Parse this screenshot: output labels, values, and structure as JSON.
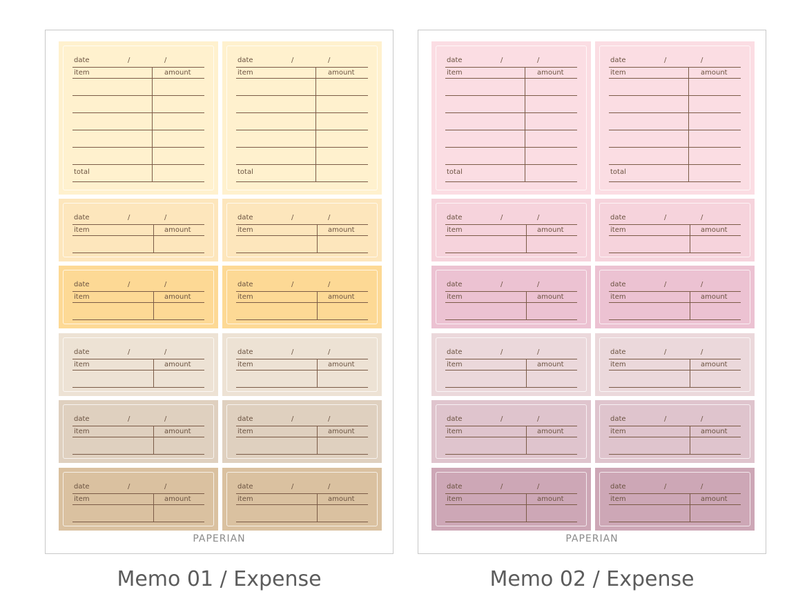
{
  "sheets": [
    {
      "brand": "PAPERIAN",
      "caption": "Memo 01 / Expense",
      "colors": [
        "#fff1ce",
        "#fde6bc",
        "#fdd995",
        "#ede2d4",
        "#dfd0bf",
        "#dac1a0"
      ]
    },
    {
      "brand": "PAPERIAN",
      "caption": "Memo 02 / Expense",
      "colors": [
        "#fbdde3",
        "#f6d3dc",
        "#ecc2d2",
        "#ebd8db",
        "#dfc4cd",
        "#cda7b6"
      ]
    }
  ],
  "memo": {
    "date_label": "date",
    "separator": "/",
    "item_label": "item",
    "amount_label": "amount",
    "total_label": "total"
  }
}
